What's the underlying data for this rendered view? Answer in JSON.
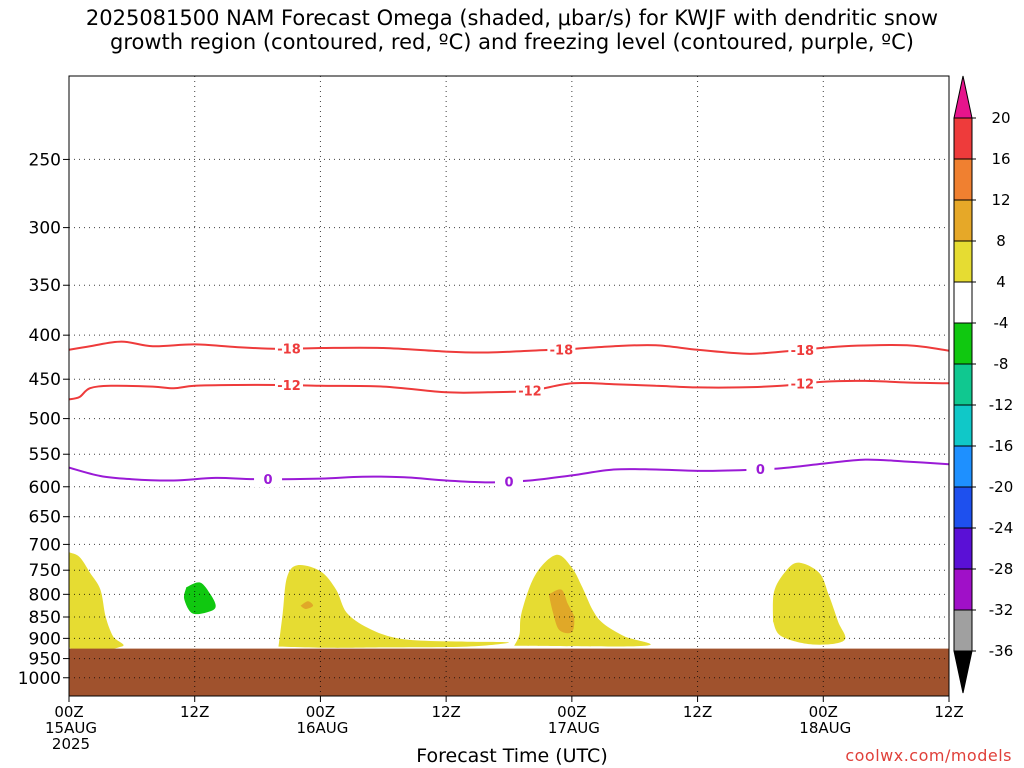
{
  "title": {
    "line1": "2025081500 NAM Forecast Omega (shaded, μbar/s) for KWJF with dendritic snow",
    "line2": "growth region (contoured, red, ºC) and freezing level (contoured, purple, ºC)"
  },
  "credit": "coolwx.com/models",
  "chart_data": {
    "type": "contour",
    "title": "2025081500 NAM Forecast Omega (shaded, μbar/s) for KWJF with dendritic snow growth region (contoured, red, ºC) and freezing level (contoured, purple, ºC)",
    "xlabel": "Forecast Time (UTC)",
    "ylabel": "",
    "x_ticks": [
      {
        "hour": 0,
        "lines": [
          "00Z",
          "15AUG",
          "2025"
        ]
      },
      {
        "hour": 12,
        "lines": [
          "12Z"
        ]
      },
      {
        "hour": 24,
        "lines": [
          "00Z",
          "16AUG"
        ]
      },
      {
        "hour": 36,
        "lines": [
          "12Z"
        ]
      },
      {
        "hour": 48,
        "lines": [
          "00Z",
          "17AUG"
        ]
      },
      {
        "hour": 60,
        "lines": [
          "12Z"
        ]
      },
      {
        "hour": 72,
        "lines": [
          "00Z",
          "18AUG"
        ]
      },
      {
        "hour": 84,
        "lines": [
          "12Z"
        ]
      }
    ],
    "xlim": [
      0,
      84
    ],
    "y_ticks": [
      250,
      300,
      350,
      400,
      450,
      500,
      550,
      600,
      650,
      700,
      750,
      800,
      850,
      900,
      950,
      1000
    ],
    "ylim": [
      1050,
      200
    ],
    "y_scale": "log",
    "grid": true,
    "surface_pressure": 925,
    "surface_color": "#a0522d",
    "contours": [
      {
        "level_label": "-18",
        "color": "#ee3b3b",
        "points": [
          [
            0,
            416
          ],
          [
            2,
            412
          ],
          [
            5,
            407
          ],
          [
            8,
            412
          ],
          [
            12,
            410
          ],
          [
            16,
            413
          ],
          [
            20,
            415
          ],
          [
            24,
            414
          ],
          [
            30,
            414
          ],
          [
            36,
            418
          ],
          [
            40,
            419
          ],
          [
            44,
            417
          ],
          [
            48,
            415
          ],
          [
            52,
            412
          ],
          [
            56,
            411
          ],
          [
            60,
            416
          ],
          [
            64,
            420
          ],
          [
            66,
            420
          ],
          [
            70,
            416
          ],
          [
            74,
            412
          ],
          [
            80,
            411
          ],
          [
            84,
            417
          ]
        ],
        "labels_at": [
          21,
          47,
          70
        ]
      },
      {
        "level_label": "-12",
        "color": "#ee3b3b",
        "points": [
          [
            0,
            475
          ],
          [
            1,
            472
          ],
          [
            2,
            461
          ],
          [
            4,
            458
          ],
          [
            8,
            459
          ],
          [
            10,
            461
          ],
          [
            12,
            458
          ],
          [
            16,
            457
          ],
          [
            20,
            457
          ],
          [
            24,
            458
          ],
          [
            30,
            459
          ],
          [
            36,
            466
          ],
          [
            40,
            466
          ],
          [
            44,
            464
          ],
          [
            48,
            455
          ],
          [
            52,
            456
          ],
          [
            56,
            458
          ],
          [
            60,
            460
          ],
          [
            64,
            460
          ],
          [
            68,
            458
          ],
          [
            72,
            453
          ],
          [
            76,
            452
          ],
          [
            80,
            454
          ],
          [
            84,
            455
          ]
        ],
        "labels_at": [
          21,
          44,
          70
        ]
      },
      {
        "level_label": "0",
        "color": "#9a1ad6",
        "points": [
          [
            0,
            570
          ],
          [
            3,
            583
          ],
          [
            6,
            588
          ],
          [
            10,
            590
          ],
          [
            14,
            586
          ],
          [
            18,
            588
          ],
          [
            24,
            587
          ],
          [
            28,
            584
          ],
          [
            32,
            585
          ],
          [
            36,
            590
          ],
          [
            40,
            593
          ],
          [
            44,
            590
          ],
          [
            48,
            582
          ],
          [
            52,
            573
          ],
          [
            56,
            573
          ],
          [
            60,
            575
          ],
          [
            64,
            574
          ],
          [
            68,
            571
          ],
          [
            72,
            564
          ],
          [
            76,
            558
          ],
          [
            80,
            561
          ],
          [
            84,
            565
          ]
        ],
        "labels_at": [
          19,
          42,
          66
        ]
      }
    ],
    "shaded_regions": [
      {
        "value_range": [
          4,
          8
        ],
        "color": "#e6dc32",
        "points": [
          [
            0,
            715
          ],
          [
            1,
            724
          ],
          [
            2,
            755
          ],
          [
            3,
            790
          ],
          [
            3.5,
            850
          ],
          [
            4.2,
            895
          ],
          [
            5,
            920
          ],
          [
            0,
            920
          ]
        ]
      },
      {
        "value_range": [
          -8,
          -4
        ],
        "color": "#10c810",
        "points": [
          [
            11.2,
            785
          ],
          [
            12.5,
            775
          ],
          [
            13.5,
            800
          ],
          [
            14,
            825
          ],
          [
            13.5,
            837
          ],
          [
            11.8,
            842
          ],
          [
            11,
            810
          ]
        ]
      },
      {
        "value_range": [
          4,
          8
        ],
        "color": "#e6dc32",
        "points": [
          [
            20,
            920
          ],
          [
            20.4,
            842
          ],
          [
            20.8,
            765
          ],
          [
            21.8,
            740
          ],
          [
            24,
            752
          ],
          [
            25.5,
            790
          ],
          [
            26.5,
            840
          ],
          [
            28.5,
            875
          ],
          [
            31,
            898
          ],
          [
            34,
            906
          ],
          [
            38,
            908
          ],
          [
            42,
            910
          ],
          [
            38,
            920
          ],
          [
            30,
            922
          ],
          [
            25,
            923
          ]
        ]
      },
      {
        "value_range": [
          8,
          12
        ],
        "color": "#e0a828",
        "points": [
          [
            22.1,
            825
          ],
          [
            22.8,
            815
          ],
          [
            23.3,
            825
          ],
          [
            22.6,
            832
          ]
        ]
      },
      {
        "value_range": [
          4,
          8
        ],
        "color": "#e6dc32",
        "points": [
          [
            42.5,
            918
          ],
          [
            43,
            890
          ],
          [
            43.2,
            840
          ],
          [
            44.5,
            760
          ],
          [
            46.5,
            720
          ],
          [
            48,
            745
          ],
          [
            49,
            785
          ],
          [
            50,
            835
          ],
          [
            51,
            865
          ],
          [
            53,
            895
          ],
          [
            55,
            918
          ]
        ]
      },
      {
        "value_range": [
          8,
          12
        ],
        "color": "#e0a828",
        "points": [
          [
            45.8,
            800
          ],
          [
            47,
            790
          ],
          [
            47.6,
            820
          ],
          [
            48.2,
            850
          ],
          [
            48,
            885
          ],
          [
            46.8,
            880
          ],
          [
            46.2,
            840
          ]
        ]
      },
      {
        "value_range": [
          4,
          8
        ],
        "color": "#e6dc32",
        "points": [
          [
            67.2,
            860
          ],
          [
            67.3,
            795
          ],
          [
            68.3,
            755
          ],
          [
            69.6,
            735
          ],
          [
            71.6,
            755
          ],
          [
            72.5,
            800
          ],
          [
            73.4,
            860
          ],
          [
            74,
            905
          ],
          [
            71,
            915
          ],
          [
            68,
            895
          ]
        ]
      }
    ],
    "colorbar": {
      "labels": [
        "20",
        "16",
        "12",
        "8",
        "4",
        "-4",
        "-8",
        "-12",
        "-16",
        "-20",
        "-24",
        "-28",
        "-32",
        "-36"
      ],
      "colors": [
        "#ee3b3b",
        "#f08030",
        "#e6a828",
        "#e6dc32",
        "#ffffff",
        "#10c810",
        "#10c890",
        "#10c8c8",
        "#1e90ff",
        "#1e50ee",
        "#5a10d6",
        "#a010c8",
        "#a0a0a0"
      ],
      "top_arrow_color": "#e6148c",
      "bottom_arrow_color": "#000000"
    }
  }
}
